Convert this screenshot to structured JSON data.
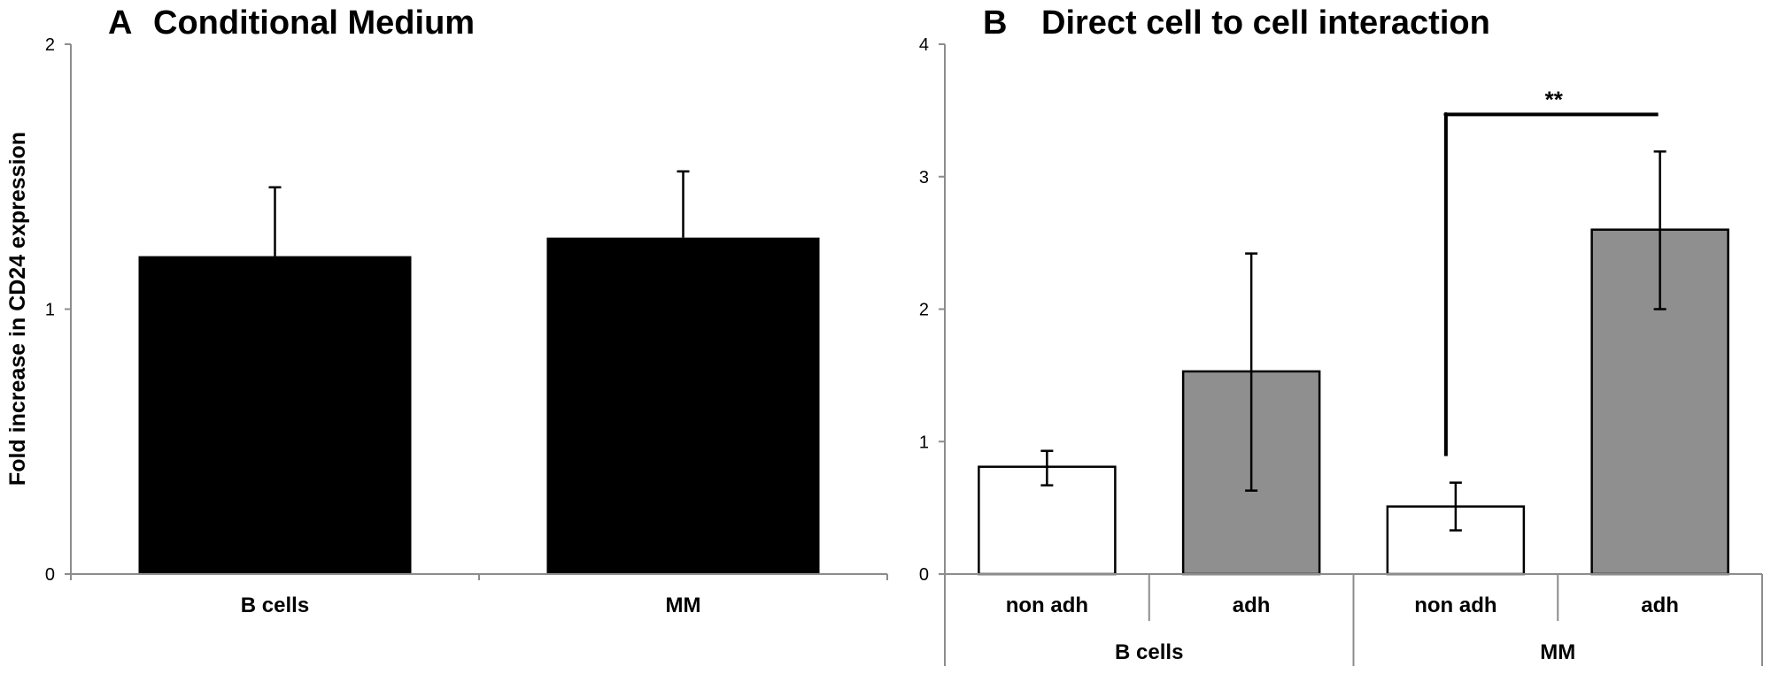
{
  "figure": {
    "ylabel": "Fold increase in CD24 expression",
    "colors": {
      "panel_a_bar": "#000000",
      "non_adh_bar": "#ffffff",
      "adh_bar": "#8f8f8f",
      "bar_edge": "#000000",
      "axis": "#8c8c8c"
    }
  },
  "chart_data": [
    {
      "type": "bar",
      "panel": "A",
      "title": "A  Conditional Medium",
      "title_letter": "A",
      "title_text": "Conditional Medium",
      "xlabel": "",
      "ylabel": "Fold increase in CD24 expression",
      "ylim": [
        0,
        2
      ],
      "yticks": [
        0,
        1,
        2
      ],
      "grid": false,
      "legend": null,
      "categories": [
        "B cells",
        "MM"
      ],
      "values": [
        1.2,
        1.27
      ],
      "error_upper": [
        1.46,
        1.52
      ],
      "error_lower": [
        null,
        null
      ],
      "bar_color": "#000000"
    },
    {
      "type": "bar",
      "panel": "B",
      "title": "B   Direct cell to cell interaction",
      "title_letter": "B",
      "title_text": "Direct cell to cell interaction",
      "xlabel": "",
      "ylabel": "Fold increase in CD24 expression",
      "ylim": [
        0,
        4
      ],
      "yticks": [
        0,
        1,
        2,
        3,
        4
      ],
      "grid": false,
      "legend": null,
      "groups": [
        "B cells",
        "MM"
      ],
      "categories": [
        "non adh",
        "adh",
        "non adh",
        "adh"
      ],
      "group_of_category": [
        "B cells",
        "B cells",
        "MM",
        "MM"
      ],
      "values": [
        0.81,
        1.53,
        0.51,
        2.6
      ],
      "error_upper": [
        0.93,
        2.42,
        0.69,
        3.19
      ],
      "error_lower": [
        0.67,
        0.63,
        0.33,
        2.0
      ],
      "bar_colors": [
        "#ffffff",
        "#8f8f8f",
        "#ffffff",
        "#8f8f8f"
      ],
      "annotations": [
        {
          "type": "significance_bracket",
          "label": "**",
          "from_category_index": 2,
          "to_category_index": 3,
          "y": 3.47
        }
      ]
    }
  ]
}
